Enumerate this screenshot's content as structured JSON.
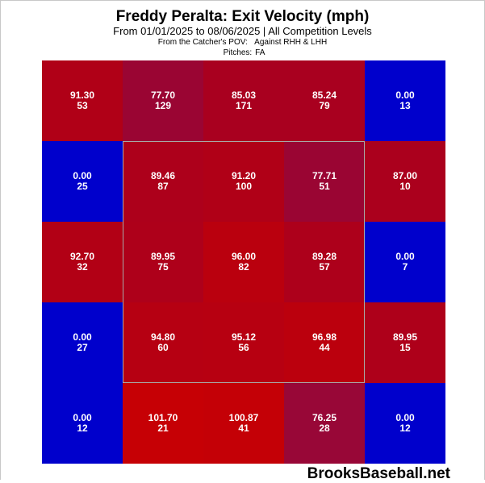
{
  "header": {
    "title": "Freddy Peralta: Exit Velocity (mph)",
    "subtitle": "From 01/01/2025 to 08/06/2025 | All Competition Levels",
    "pov_label": "From the Catcher's POV:",
    "pov_value": "Against RHH & LHH",
    "pitches_label": "Pitches:",
    "pitches_value": "FA"
  },
  "branding": "BrooksBaseball.net",
  "chart_data": {
    "type": "heatmap",
    "title": "Freddy Peralta: Exit Velocity (mph)",
    "subtitle": "From 01/01/2025 to 08/06/2025 | All Competition Levels",
    "rows": 5,
    "cols": 5,
    "strike_zone": "inner 3x3 cells",
    "cells": [
      [
        {
          "value": "91.30",
          "count": "53",
          "color": "#b00017"
        },
        {
          "value": "77.70",
          "count": "129",
          "color": "#9a0533"
        },
        {
          "value": "85.03",
          "count": "171",
          "color": "#a9001f"
        },
        {
          "value": "85.24",
          "count": "79",
          "color": "#a9001f"
        },
        {
          "value": "0.00",
          "count": "13",
          "color": "#0000cc"
        }
      ],
      [
        {
          "value": "0.00",
          "count": "25",
          "color": "#0000cc"
        },
        {
          "value": "89.46",
          "count": "87",
          "color": "#ad001b"
        },
        {
          "value": "91.20",
          "count": "100",
          "color": "#b00017"
        },
        {
          "value": "77.71",
          "count": "51",
          "color": "#9a0533"
        },
        {
          "value": "87.00",
          "count": "10",
          "color": "#ab001d"
        }
      ],
      [
        {
          "value": "92.70",
          "count": "32",
          "color": "#b20015"
        },
        {
          "value": "89.95",
          "count": "75",
          "color": "#ae001a"
        },
        {
          "value": "96.00",
          "count": "82",
          "color": "#ba000e"
        },
        {
          "value": "89.28",
          "count": "57",
          "color": "#ad001b"
        },
        {
          "value": "0.00",
          "count": "7",
          "color": "#0000cc"
        }
      ],
      [
        {
          "value": "0.00",
          "count": "27",
          "color": "#0000cc"
        },
        {
          "value": "94.80",
          "count": "60",
          "color": "#b60012"
        },
        {
          "value": "95.12",
          "count": "56",
          "color": "#b70011"
        },
        {
          "value": "96.98",
          "count": "44",
          "color": "#bb000d"
        },
        {
          "value": "89.95",
          "count": "15",
          "color": "#ae001a"
        }
      ],
      [
        {
          "value": "0.00",
          "count": "12",
          "color": "#0000cc"
        },
        {
          "value": "101.70",
          "count": "21",
          "color": "#c60005"
        },
        {
          "value": "100.87",
          "count": "41",
          "color": "#c40006"
        },
        {
          "value": "76.25",
          "count": "28",
          "color": "#980737"
        },
        {
          "value": "0.00",
          "count": "12",
          "color": "#0000cc"
        }
      ]
    ]
  }
}
